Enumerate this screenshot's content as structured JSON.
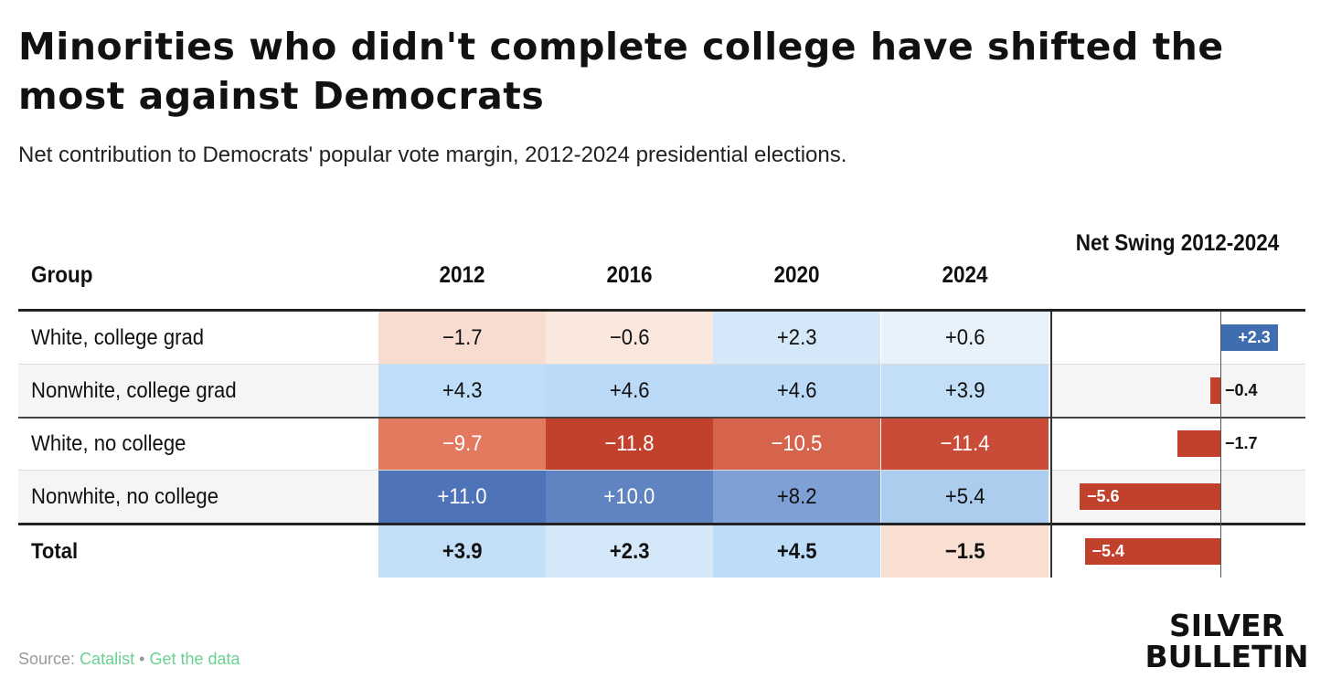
{
  "title": "Minorities who didn't complete college have shifted the most against Democrats",
  "subtitle": "Net contribution to Democrats' popular vote margin, 2012-2024 presidential elections.",
  "chart_data": {
    "type": "table",
    "title": "Minorities who didn't complete college have shifted the most against Democrats",
    "subtitle": "Net contribution to Democrats' popular vote margin, 2012-2024 presidential elections.",
    "group_header": "Group",
    "columns": [
      "2012",
      "2016",
      "2020",
      "2024"
    ],
    "swing_header": "Net Swing 2012-2024",
    "rows": [
      {
        "group": "White, college grad",
        "values": [
          -1.7,
          -0.6,
          2.3,
          0.6
        ],
        "swing": 2.3
      },
      {
        "group": "Nonwhite, college grad",
        "values": [
          4.3,
          4.6,
          4.6,
          3.9
        ],
        "swing": -0.4
      },
      {
        "group": "White, no college",
        "values": [
          -9.7,
          -11.8,
          -10.5,
          -11.4
        ],
        "swing": -1.7
      },
      {
        "group": "Nonwhite, no college",
        "values": [
          11.0,
          10.0,
          8.2,
          5.4
        ],
        "swing": -5.6
      }
    ],
    "total": {
      "group": "Total",
      "values": [
        3.9,
        2.3,
        4.5,
        -1.5
      ],
      "swing": -5.4
    },
    "colors": {
      "positive_bar": "#3f6db0",
      "negative_bar": "#c2412d"
    }
  },
  "footer": {
    "source_prefix": "Source:",
    "source_name": "Catalist",
    "separator": "•",
    "data_link": "Get the data"
  },
  "brand": {
    "line1": "SILVER",
    "line2": "BULLETIN"
  }
}
